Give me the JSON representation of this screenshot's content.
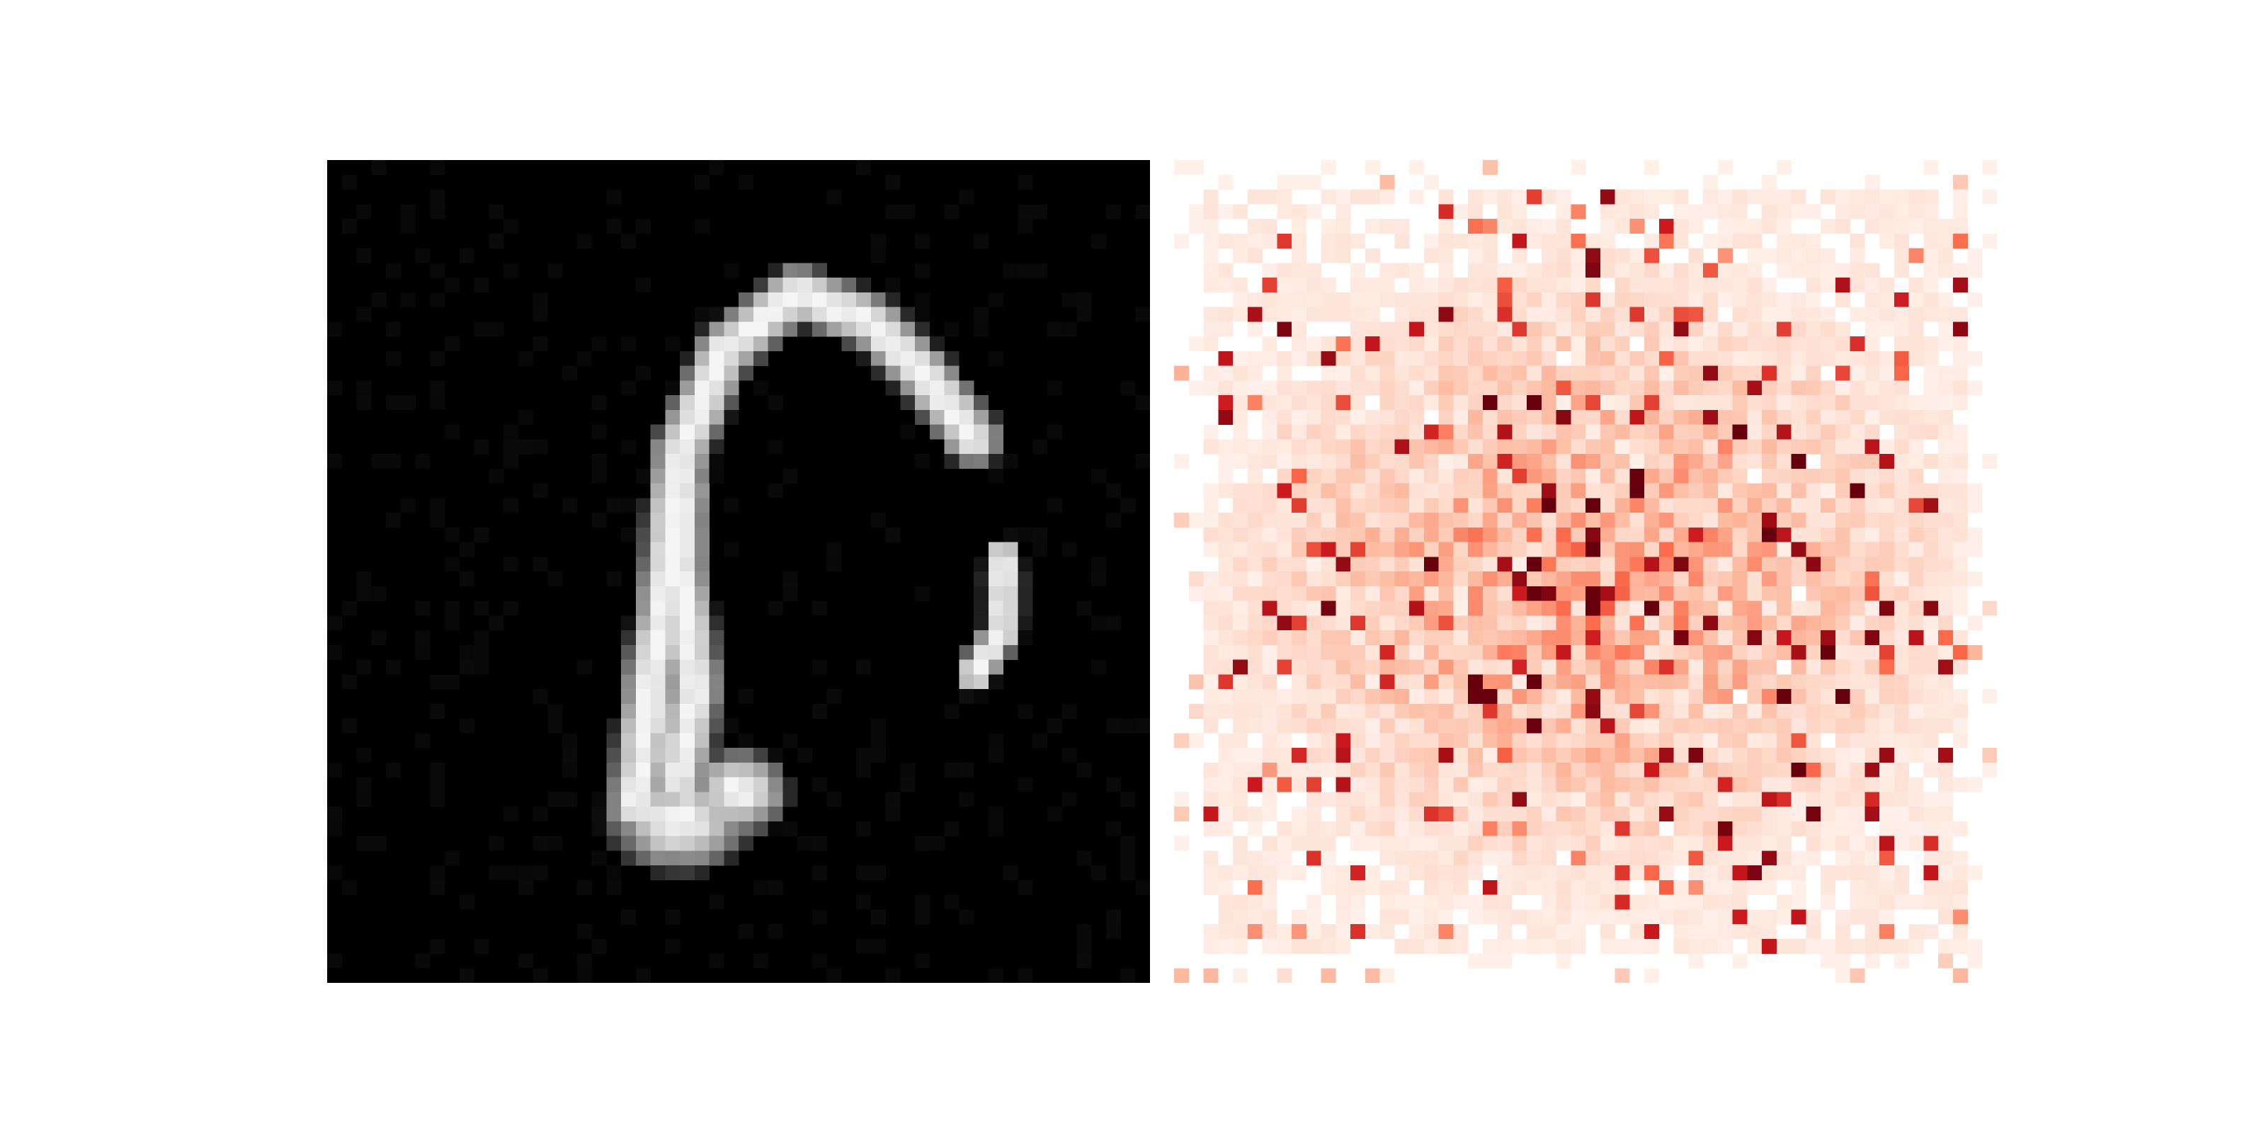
{
  "figure": {
    "panels": [
      {
        "id": "generated-sample",
        "kind": "grayscale-image",
        "grid_size": 56,
        "background": "#000000",
        "foreground": "#ffffff"
      },
      {
        "id": "attribution-heatmap",
        "kind": "heatmap",
        "grid_size": 56,
        "colormap": "Reds",
        "low_color": "#fff5f0",
        "high_color": "#67000d"
      }
    ]
  }
}
